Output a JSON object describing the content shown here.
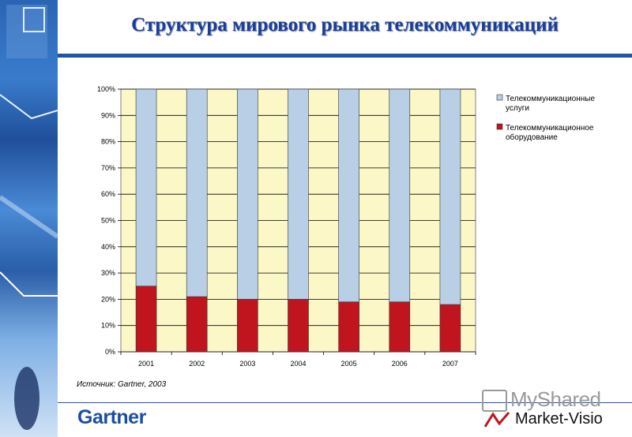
{
  "title": "Структура мирового рынка телекоммуникаций",
  "source": "Источник: Gartner, 2003",
  "footer": {
    "logo_text": "Gartner",
    "watermark_text": "MyShared",
    "partner_text": "Market-Visio"
  },
  "colors": {
    "services": "#b8cfe6",
    "equipment": "#c0151f",
    "plot_bg": "#fbf7c6",
    "accent": "#1f55a6"
  },
  "chart_data": {
    "type": "bar",
    "stacked": true,
    "categories": [
      "2001",
      "2002",
      "2003",
      "2004",
      "2005",
      "2006",
      "2007"
    ],
    "series": [
      {
        "name": "Телекоммуникационное оборудование",
        "values": [
          25,
          21,
          20,
          20,
          19,
          19,
          18
        ]
      },
      {
        "name": "Телекоммуникационные услуги",
        "values": [
          75,
          79,
          80,
          80,
          81,
          81,
          82
        ]
      }
    ],
    "ylim": [
      0,
      100
    ],
    "yticks": [
      "0%",
      "10%",
      "20%",
      "30%",
      "40%",
      "50%",
      "60%",
      "70%",
      "80%",
      "90%",
      "100%"
    ],
    "grid": true,
    "legend": "right",
    "legend_entries": [
      {
        "lines": [
          "Телекоммуникационные",
          "услуги"
        ],
        "series": 1
      },
      {
        "lines": [
          "Телекоммуникационное",
          "оборудование"
        ],
        "series": 0
      }
    ]
  }
}
